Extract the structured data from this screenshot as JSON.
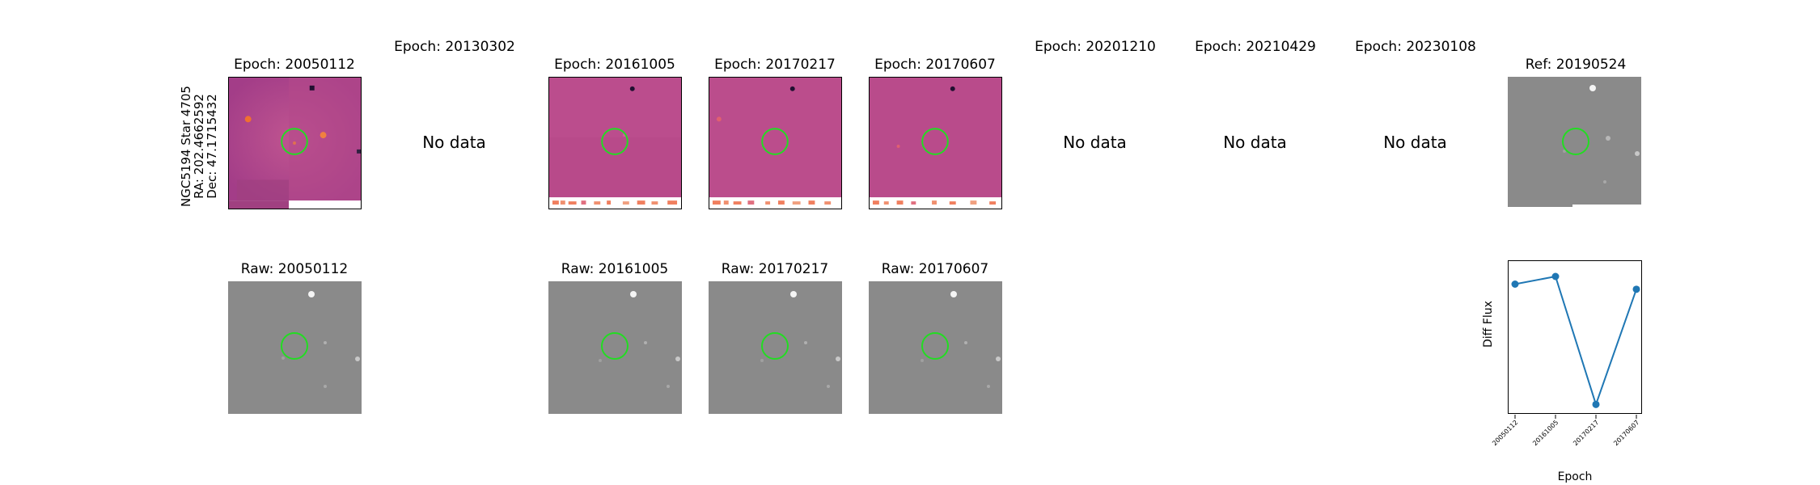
{
  "star_label": {
    "line1": "NGC5194 Star 4705",
    "line2": "RA: 202.4662592",
    "line3": "Dec: 47.1715432"
  },
  "top_row": [
    {
      "title": "Epoch: 20050112",
      "has_data": true
    },
    {
      "title": "Epoch: 20130302",
      "has_data": false,
      "nodata": "No data"
    },
    {
      "title": "Epoch: 20161005",
      "has_data": true
    },
    {
      "title": "Epoch: 20170217",
      "has_data": true
    },
    {
      "title": "Epoch: 20170607",
      "has_data": true
    },
    {
      "title": "Epoch: 20201210",
      "has_data": false,
      "nodata": "No data"
    },
    {
      "title": "Epoch: 20210429",
      "has_data": false,
      "nodata": "No data"
    },
    {
      "title": "Epoch: 20230108",
      "has_data": false,
      "nodata": "No data"
    },
    {
      "title": "Ref: 20190524",
      "has_data": true
    }
  ],
  "bottom_row": [
    {
      "title": "Raw: 20050112"
    },
    {
      "title": "Raw: 20161005"
    },
    {
      "title": "Raw: 20170217"
    },
    {
      "title": "Raw: 20170607"
    }
  ],
  "colors": {
    "diff_bg": "#b84a8a",
    "raw_bg": "#8a8a8a",
    "aperture": "#22dd22",
    "series": "#1f77b4"
  },
  "chart_data": {
    "type": "line",
    "x": [
      "20050112",
      "20161005",
      "20170217",
      "20170607"
    ],
    "values": [
      0.82,
      0.88,
      -0.12,
      0.78
    ],
    "xlabel": "Epoch",
    "ylabel": "Diff Flux",
    "ylim": [
      -0.2,
      1.0
    ],
    "grid": false
  }
}
